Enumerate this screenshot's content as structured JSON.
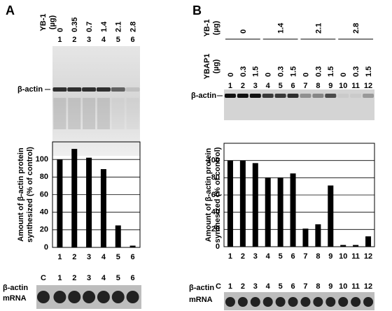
{
  "chart_data": [
    {
      "type": "bar",
      "y_label": [
        "Amount of β-actin protein",
        "synthesized (% of control)"
      ],
      "categories": [
        "1",
        "2",
        "3",
        "4",
        "5",
        "6"
      ],
      "values": [
        100,
        112,
        102,
        89,
        25,
        2
      ],
      "color": "#000000",
      "ylim": [
        0,
        120
      ],
      "yticks": [
        0,
        20,
        40,
        60,
        80,
        100
      ],
      "grid": true
    },
    {
      "type": "bar",
      "y_label": [
        "Amount of β-actin protein",
        "synthesized (% of control)"
      ],
      "categories": [
        "1",
        "2",
        "3",
        "4",
        "5",
        "6",
        "7",
        "8",
        "9",
        "10",
        "11",
        "12"
      ],
      "values": [
        100,
        100,
        97,
        80,
        80,
        85,
        21,
        26,
        71,
        2,
        2,
        12
      ],
      "color": "#000000",
      "ylim": [
        0,
        120
      ],
      "yticks": [
        0,
        20,
        40,
        60,
        80,
        100
      ],
      "grid": true
    }
  ],
  "panel_a": {
    "letter": "A",
    "yb1_label": [
      "YB-1",
      "(µg)"
    ],
    "yb1_doses": [
      "0",
      "0.35",
      "0.7",
      "1.4",
      "2.1",
      "2.8"
    ],
    "lanes": [
      "1",
      "2",
      "3",
      "4",
      "5",
      "6"
    ],
    "band_label": "β-actin",
    "mrna_label": [
      "β-actin",
      "mRNA"
    ],
    "mrna_lanes": [
      "C",
      "1",
      "2",
      "3",
      "4",
      "5",
      "6"
    ]
  },
  "panel_b": {
    "letter": "B",
    "yb1_label": [
      "YB-1",
      "(µg)"
    ],
    "yb1_doses": [
      "0",
      "1.4",
      "2.1",
      "2.8"
    ],
    "ybap1_label": [
      "YBAP1",
      "(µg)"
    ],
    "ybap1_doses": [
      "0",
      "0.3",
      "1.5",
      "0",
      "0.3",
      "1.5",
      "0",
      "0.3",
      "1.5",
      "0",
      "0.3",
      "1.5"
    ],
    "lanes": [
      "1",
      "2",
      "3",
      "4",
      "5",
      "6",
      "7",
      "8",
      "9",
      "10",
      "11",
      "12"
    ],
    "band_label": "β-actin",
    "mrna_label": [
      "β-actin",
      "mRNA"
    ],
    "mrna_lanes": [
      "C",
      "1",
      "2",
      "3",
      "4",
      "5",
      "6",
      "7",
      "8",
      "9",
      "10",
      "11",
      "12"
    ]
  }
}
